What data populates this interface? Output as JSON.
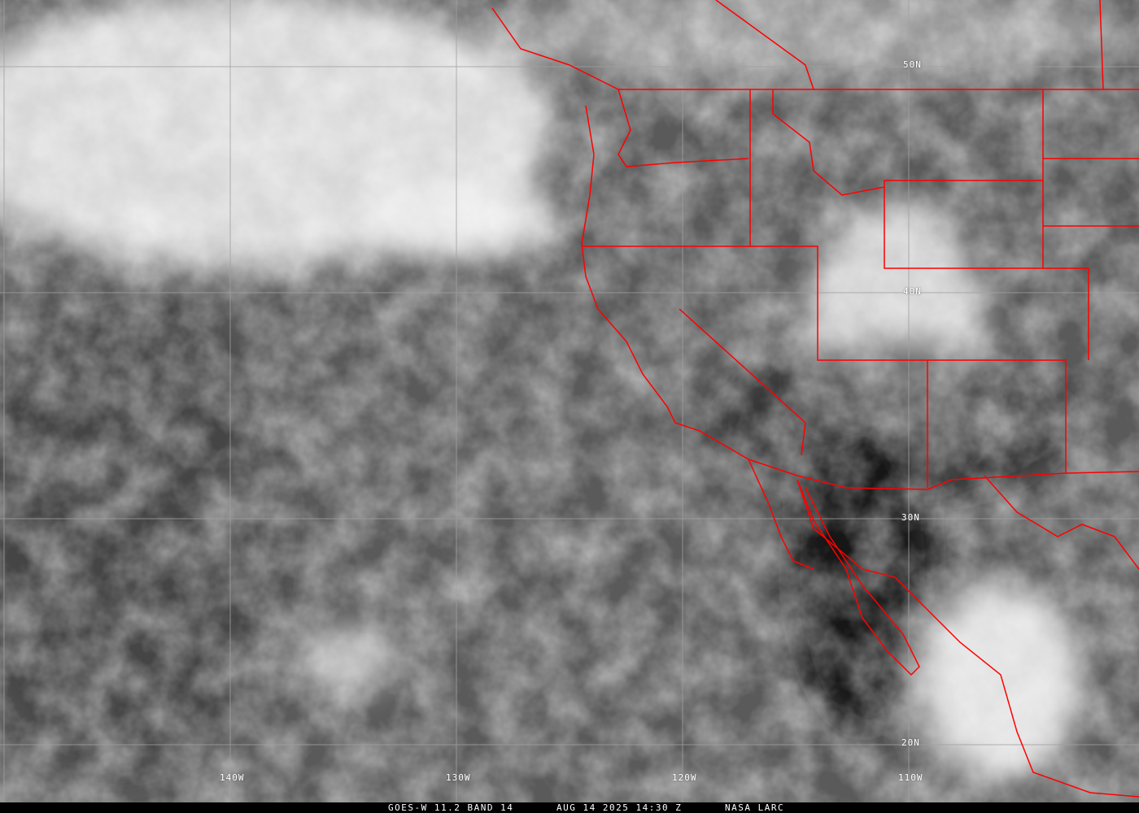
{
  "image": {
    "type": "satellite infrared image",
    "colors": {
      "borders": "#ff0000",
      "grid": "#a0a0a0",
      "labels": "#ffffff",
      "caption_bg": "#000000"
    }
  },
  "grid_labels": {
    "longitudes": [
      "140W",
      "130W",
      "120W",
      "110W"
    ],
    "latitudes": [
      "50N",
      "40N",
      "30N",
      "20N"
    ]
  },
  "caption": {
    "satellite": "GOES-W 11.2 BAND 14",
    "datetime": "AUG 14 2025 14:30 Z",
    "source": "NASA LARC"
  }
}
